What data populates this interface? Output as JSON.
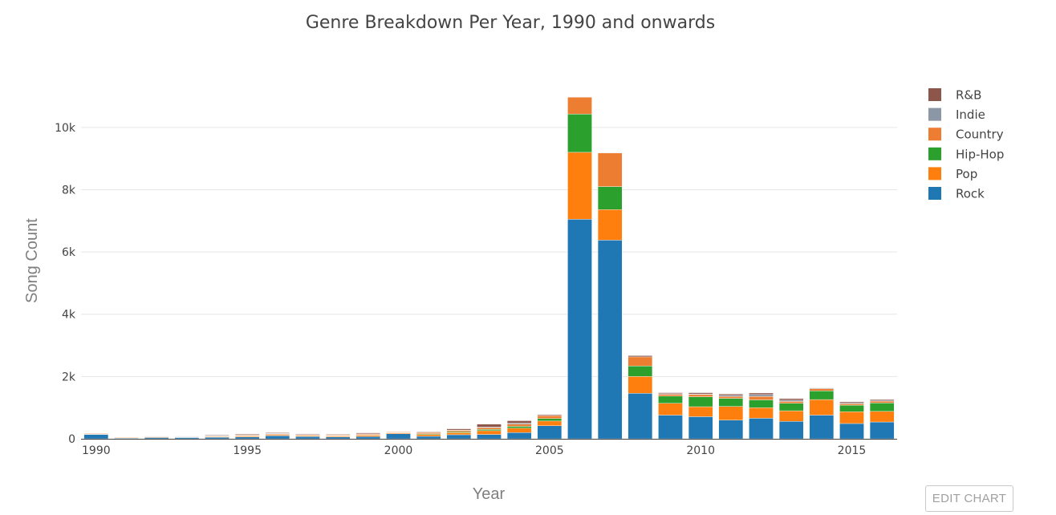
{
  "chart_data": {
    "type": "bar",
    "stacked": true,
    "title": "Genre Breakdown Per Year, 1990 and onwards",
    "xlabel": "Year",
    "ylabel": "Song Count",
    "ylim": [
      0,
      11000
    ],
    "xlim": [
      1989.5,
      2016.5
    ],
    "y_ticks": [
      0,
      2000,
      4000,
      6000,
      8000,
      10000
    ],
    "y_tick_labels": [
      "0",
      "2k",
      "4k",
      "6k",
      "8k",
      "10k"
    ],
    "x_ticks": [
      1990,
      1995,
      2000,
      2005,
      2010,
      2015
    ],
    "x_tick_labels": [
      "1990",
      "1995",
      "2000",
      "2005",
      "2010",
      "2015"
    ],
    "grid": true,
    "legend_position": "right",
    "categories": [
      1990,
      1991,
      1992,
      1993,
      1994,
      1995,
      1996,
      1997,
      1998,
      1999,
      2000,
      2001,
      2002,
      2003,
      2004,
      2005,
      2006,
      2007,
      2008,
      2009,
      2010,
      2011,
      2012,
      2013,
      2014,
      2015,
      2016
    ],
    "series": [
      {
        "name": "Rock",
        "color": "#1f77b4",
        "values": [
          140,
          20,
          40,
          40,
          50,
          60,
          100,
          70,
          60,
          70,
          160,
          80,
          130,
          140,
          200,
          420,
          7050,
          6380,
          1460,
          760,
          710,
          600,
          660,
          560,
          760,
          490,
          540
        ]
      },
      {
        "name": "Pop",
        "color": "#ff7f0e",
        "values": [
          10,
          20,
          20,
          10,
          20,
          30,
          30,
          30,
          30,
          40,
          30,
          60,
          70,
          120,
          140,
          150,
          2150,
          980,
          540,
          380,
          320,
          440,
          340,
          340,
          500,
          380,
          340
        ]
      },
      {
        "name": "Hip-Hop",
        "color": "#2ca02c",
        "values": [
          0,
          0,
          0,
          0,
          10,
          10,
          10,
          10,
          10,
          10,
          10,
          20,
          30,
          40,
          60,
          80,
          1230,
          740,
          340,
          230,
          320,
          260,
          250,
          240,
          280,
          210,
          270
        ]
      },
      {
        "name": "Country",
        "color": "#ed7d31",
        "values": [
          20,
          10,
          10,
          10,
          10,
          20,
          20,
          20,
          20,
          30,
          20,
          40,
          40,
          60,
          70,
          90,
          540,
          1080,
          290,
          60,
          70,
          60,
          110,
          60,
          70,
          50,
          60
        ]
      },
      {
        "name": "Indie",
        "color": "#8c97a6",
        "values": [
          10,
          0,
          0,
          10,
          10,
          20,
          20,
          10,
          10,
          10,
          10,
          10,
          10,
          20,
          30,
          10,
          0,
          0,
          0,
          20,
          20,
          40,
          60,
          40,
          20,
          30,
          30
        ]
      },
      {
        "name": "R&B",
        "color": "#8c564b",
        "values": [
          10,
          0,
          10,
          10,
          20,
          20,
          20,
          20,
          20,
          30,
          10,
          20,
          40,
          90,
          80,
          30,
          10,
          10,
          40,
          30,
          40,
          40,
          50,
          50,
          10,
          30,
          30
        ]
      }
    ],
    "legend_order": [
      "R&B",
      "Indie",
      "Country",
      "Hip-Hop",
      "Pop",
      "Rock"
    ]
  },
  "controls": {
    "edit_chart_label": "EDIT CHART"
  }
}
